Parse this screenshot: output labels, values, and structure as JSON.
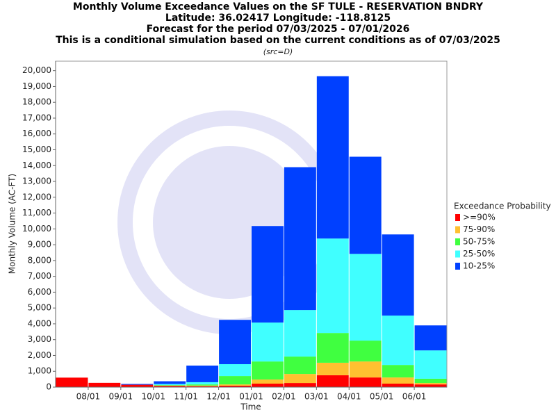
{
  "chart_data": {
    "type": "stacked_bar",
    "title": [
      "Monthly Volume Exceedance Values on the SF TULE - RESERVATION BNDRY",
      "Latitude: 36.02417 Longitude: -118.8125",
      "Forecast for the period 07/03/2025 - 07/01/2026",
      "This is a conditional simulation based on the current conditions as of 07/03/2025"
    ],
    "subtitle": "(src=D)",
    "x_label": "Time",
    "y_label": "Monthly Volume (AC-FT)",
    "legend_title": "Exceedance Probability",
    "legend_position": "right",
    "grid": false,
    "categories": [
      null,
      null,
      null,
      null,
      null,
      null,
      null,
      null,
      null,
      null,
      null,
      null
    ],
    "xticks": [
      "08/01",
      "09/01",
      "10/01",
      "11/01",
      "12/01",
      "01/01",
      "02/01",
      "03/01",
      "04/01",
      "05/01",
      "06/01"
    ],
    "ylim": [
      0,
      20600
    ],
    "yticks": [
      0,
      {
        "value": 1000,
        "label": "1,000"
      },
      {
        "value": 2000,
        "label": "2,000"
      },
      {
        "value": 3000,
        "label": "3,000"
      },
      {
        "value": 4000,
        "label": "4,000"
      },
      {
        "value": 5000,
        "label": "5,000"
      },
      {
        "value": 6000,
        "label": "6,000"
      },
      {
        "value": 7000,
        "label": "7,000"
      },
      {
        "value": 8000,
        "label": "8,000"
      },
      {
        "value": 9000,
        "label": "9,000"
      },
      {
        "value": 10000,
        "label": "10,000"
      },
      {
        "value": 11000,
        "label": "11,000"
      },
      {
        "value": 12000,
        "label": "12,000"
      },
      {
        "value": 13000,
        "label": "13,000"
      },
      {
        "value": 14000,
        "label": "14,000"
      },
      {
        "value": 15000,
        "label": "15,000"
      },
      {
        "value": 16000,
        "label": "16,000"
      },
      {
        "value": 17000,
        "label": "17,000"
      },
      {
        "value": 18000,
        "label": "18,000"
      },
      {
        "value": 19000,
        "label": "19,000"
      },
      {
        "value": 20000,
        "label": "20,000"
      }
    ],
    "series": [
      {
        "name": ">=90%",
        "color": "#ff0000",
        "values": [
          600,
          270,
          150,
          80,
          60,
          90,
          220,
          260,
          750,
          610,
          220,
          170
        ]
      },
      {
        "name": "75-90%",
        "color": "#ffc030",
        "values": [
          0,
          0,
          0,
          20,
          40,
          80,
          260,
          570,
          790,
          1010,
          390,
          90
        ]
      },
      {
        "name": "50-75%",
        "color": "#40ff40",
        "values": [
          0,
          0,
          0,
          30,
          70,
          530,
          1140,
          1100,
          1880,
          1320,
          790,
          270
        ]
      },
      {
        "name": "25-50%",
        "color": "#40ffff",
        "values": [
          0,
          0,
          0,
          70,
          140,
          750,
          2460,
          2940,
          5970,
          5480,
          3120,
          1790
        ]
      },
      {
        "name": "10-25%",
        "color": "#0040ff",
        "values": [
          0,
          0,
          50,
          170,
          1050,
          2800,
          6100,
          9030,
          10260,
          6140,
          5130,
          1580
        ]
      }
    ]
  }
}
